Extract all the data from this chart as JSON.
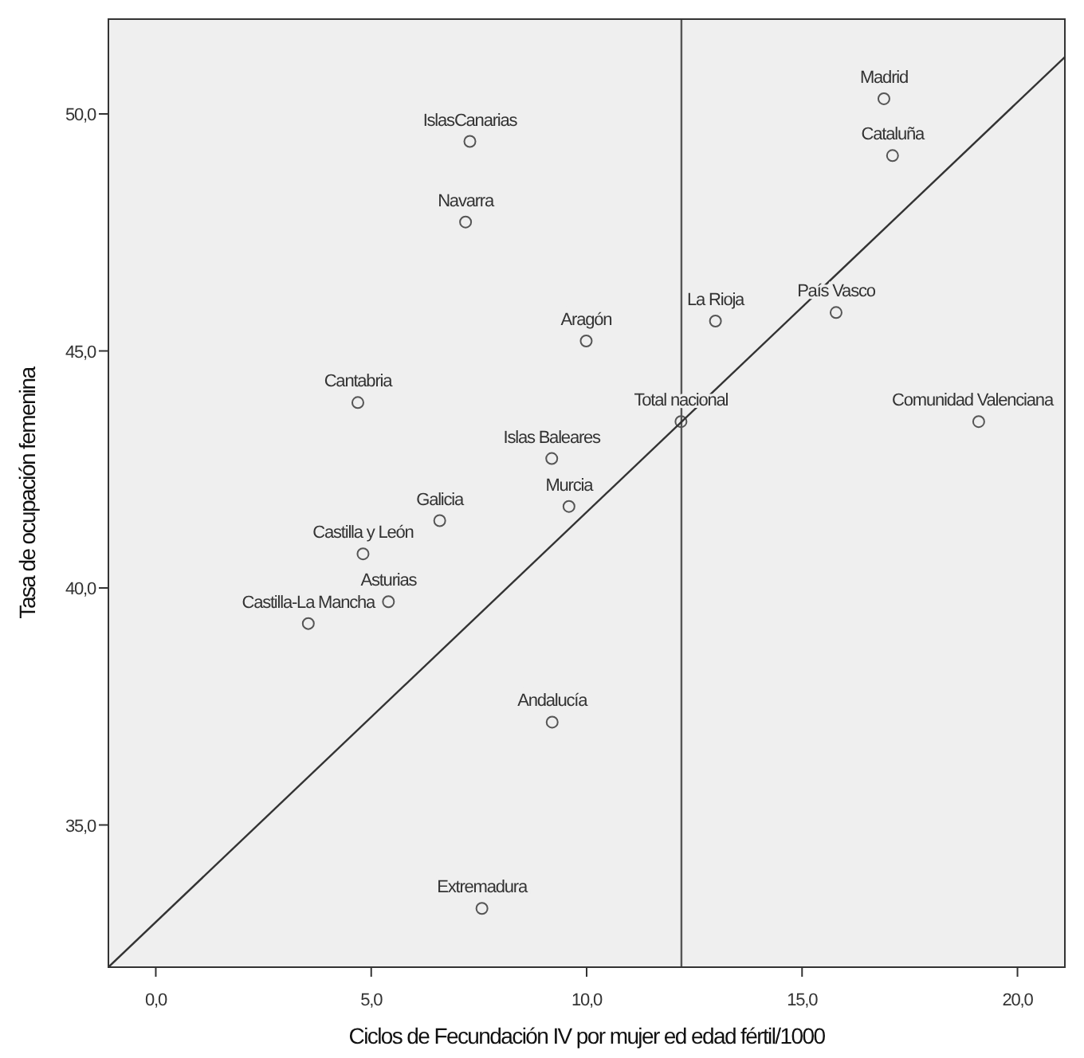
{
  "chart_data": {
    "type": "scatter",
    "xlabel": "Ciclos de Fecundación IV  por mujer ed edad fértil/1000",
    "ylabel": "Tasa de ocupación femenina",
    "xlim": [
      -1.1,
      21.1
    ],
    "ylim": [
      32.0,
      52.0
    ],
    "xticks": [
      {
        "value": 0,
        "label": "0,0"
      },
      {
        "value": 5,
        "label": "5,0"
      },
      {
        "value": 10,
        "label": "10,0"
      },
      {
        "value": 15,
        "label": "15,0"
      },
      {
        "value": 20,
        "label": "20,0"
      }
    ],
    "yticks": [
      {
        "value": 35,
        "label": "35,0"
      },
      {
        "value": 40,
        "label": "40,0"
      },
      {
        "value": 45,
        "label": "45,0"
      },
      {
        "value": 50,
        "label": "50,0"
      }
    ],
    "grid": false,
    "marker": "circle",
    "series": [
      {
        "color": "#555555",
        "x": [
          16.9,
          17.1,
          7.29,
          7.19,
          9.99,
          12.99,
          15.79,
          4.69,
          12.19,
          19.1,
          9.19,
          9.59,
          6.59,
          4.81,
          5.4,
          3.54,
          9.2,
          7.57
        ],
        "values": [
          50.32,
          49.12,
          49.42,
          47.72,
          45.21,
          45.63,
          45.81,
          43.91,
          43.51,
          43.51,
          42.73,
          41.72,
          41.42,
          40.72,
          39.71,
          39.25,
          37.17,
          33.24
        ]
      },
      {
        "type": "line",
        "color": "#333333",
        "line_style": "solid",
        "marker": "none",
        "x": [
          -1.1,
          21.1
        ],
        "values": [
          32.0,
          51.2
        ]
      }
    ],
    "ref_lines": [
      {
        "axis": "x",
        "value": 12.2,
        "label": null,
        "color": "#555555"
      }
    ],
    "annotations": [
      {
        "text": "Madrid",
        "x": 16.9,
        "y": 50.32
      },
      {
        "text": "Cataluña",
        "x": 17.1,
        "y": 49.12
      },
      {
        "text": "IslasCanarias",
        "x": 7.29,
        "y": 49.42
      },
      {
        "text": "Navarra",
        "x": 7.19,
        "y": 47.72
      },
      {
        "text": "Aragón",
        "x": 9.99,
        "y": 45.21
      },
      {
        "text": "La Rioja",
        "x": 12.99,
        "y": 45.63
      },
      {
        "text": "País Vasco",
        "x": 15.79,
        "y": 45.81
      },
      {
        "text": "Cantabria",
        "x": 4.69,
        "y": 43.91
      },
      {
        "text": "Total nacional",
        "x": 12.19,
        "y": 43.51
      },
      {
        "text": "Comunidad Valenciana",
        "x": 19.1,
        "y": 43.51
      },
      {
        "text": "Islas Baleares",
        "x": 9.19,
        "y": 42.73
      },
      {
        "text": "Murcia",
        "x": 9.59,
        "y": 41.72
      },
      {
        "text": "Galicia",
        "x": 6.59,
        "y": 41.42
      },
      {
        "text": "Castilla y León",
        "x": 4.81,
        "y": 40.72
      },
      {
        "text": "Asturias",
        "x": 5.4,
        "y": 39.71
      },
      {
        "text": "Castilla-La Mancha",
        "x": 3.54,
        "y": 39.25
      },
      {
        "text": "Andalucía",
        "x": 9.2,
        "y": 37.17
      },
      {
        "text": "Extremadura",
        "x": 7.57,
        "y": 33.24
      }
    ]
  }
}
